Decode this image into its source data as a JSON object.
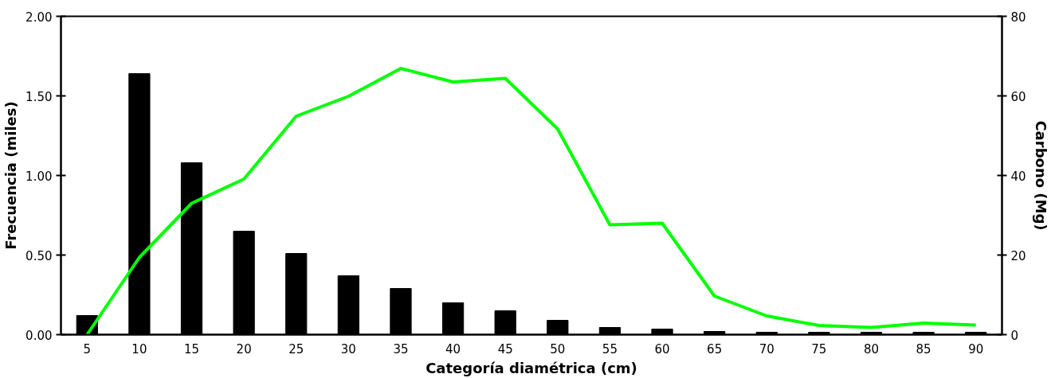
{
  "chart_data": {
    "type": "bar",
    "xlabel": "Categoría diamétrica (cm)",
    "ylabel": "Frecuencia (miles)",
    "y2label": "Carbono (Mg)",
    "categories": [
      "5",
      "10",
      "15",
      "20",
      "25",
      "30",
      "35",
      "40",
      "45",
      "50",
      "55",
      "60",
      "65",
      "70",
      "75",
      "80",
      "85",
      "90"
    ],
    "series": [
      {
        "color": "#000000",
        "values": [
          0.12,
          1.64,
          1.08,
          0.65,
          0.51,
          0.37,
          0.29,
          0.2,
          0.15,
          0.09,
          0.045,
          0.035,
          0.02,
          0.015,
          0.015,
          0.015,
          0.015,
          0.015
        ]
      },
      {
        "type": "line",
        "axis": "y2",
        "color": "#00ff00",
        "values": [
          0,
          19.4,
          33,
          39.1,
          54.9,
          59.9,
          66.9,
          63.5,
          64.4,
          51.7,
          27.6,
          28,
          9.7,
          4.7,
          2.3,
          1.8,
          2.9,
          2.4
        ]
      }
    ],
    "ylim": [
      0,
      2
    ],
    "yticks": [
      {
        "value": 0,
        "label": "0.00"
      },
      {
        "value": 0.5,
        "label": "0.50"
      },
      {
        "value": 1,
        "label": "1.00"
      },
      {
        "value": 1.5,
        "label": "1.50"
      },
      {
        "value": 2,
        "label": "2.00"
      }
    ],
    "y2lim": [
      0,
      80
    ],
    "y2ticks": [
      0,
      20,
      40,
      60,
      80
    ],
    "grid": false,
    "line_style": "solid",
    "marker": "none"
  }
}
